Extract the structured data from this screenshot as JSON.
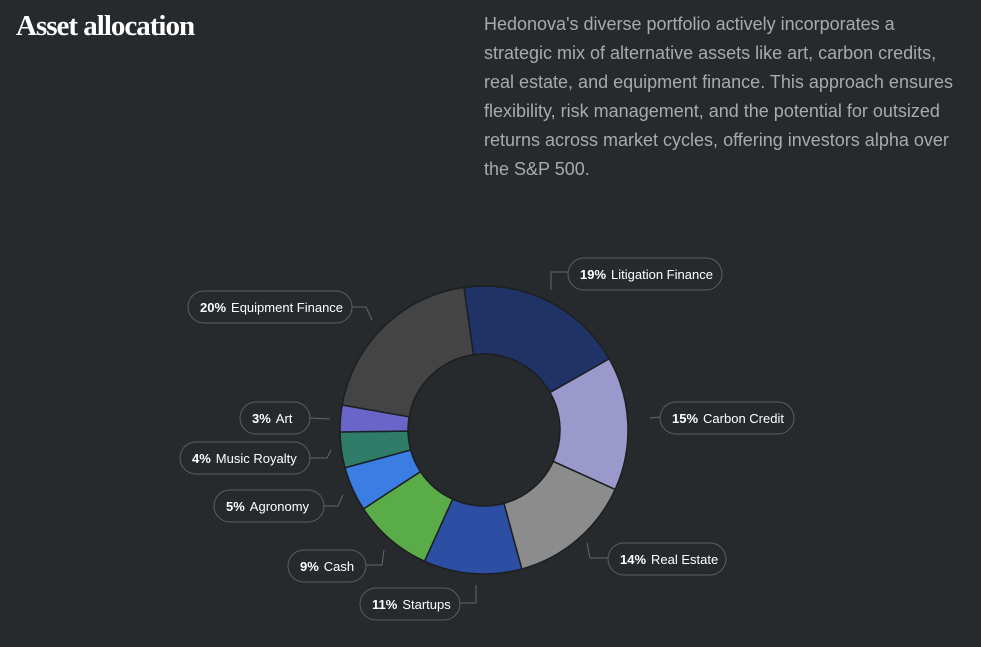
{
  "header": {
    "title": "Asset allocation",
    "description": "Hedonova's diverse portfolio actively incorporates a strategic mix of alternative assets like art, carbon credits, real estate, and equipment finance. This approach ensures flexibility, risk management, and the potential for outsized returns across market cycles, offering investors alpha over the S&P 500."
  },
  "chart_data": {
    "type": "pie",
    "variant": "donut",
    "title": "",
    "categories": [
      "Litigation Finance",
      "Carbon Credit",
      "Real Estate",
      "Startups",
      "Cash",
      "Agronomy",
      "Music Royalty",
      "Art",
      "Equipment Finance"
    ],
    "values": [
      19,
      15,
      14,
      11,
      9,
      5,
      4,
      3,
      20
    ],
    "labels": [
      "19%",
      "15%",
      "14%",
      "11%",
      "9%",
      "5%",
      "4%",
      "3%",
      "20%"
    ],
    "colors": [
      "#1f3366",
      "#9b99cc",
      "#8c8c8c",
      "#2c4fa3",
      "#5aac48",
      "#3b7de3",
      "#2f7d68",
      "#6a66c9",
      "#444444"
    ],
    "legend": "outside labels"
  }
}
